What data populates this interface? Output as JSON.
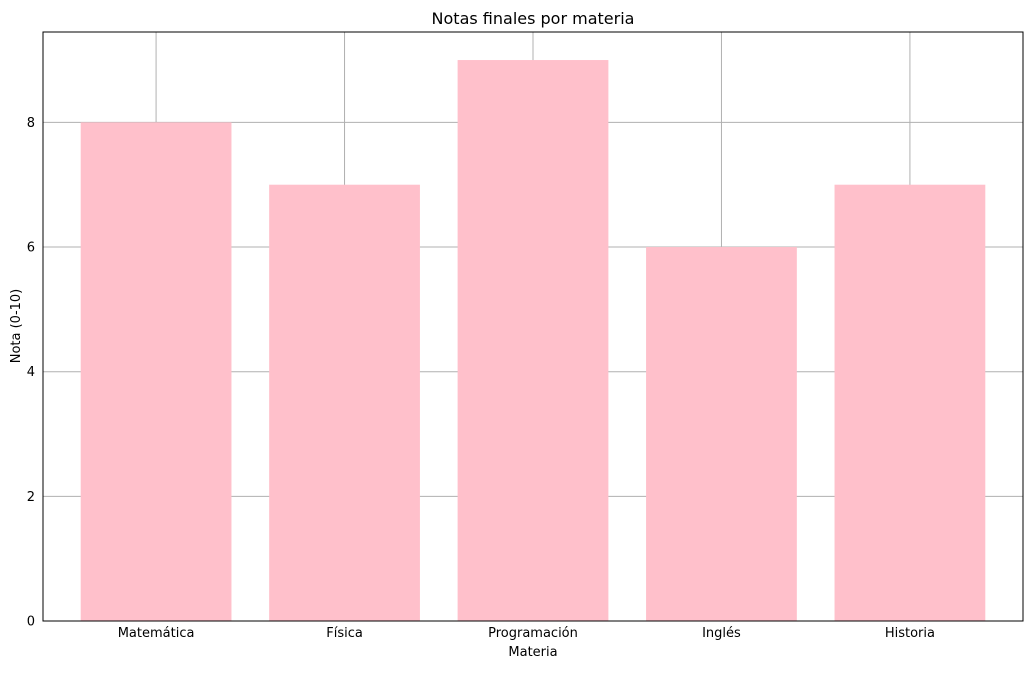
{
  "chart_data": {
    "type": "bar",
    "title": "Notas finales por materia",
    "xlabel": "Materia",
    "ylabel": "Nota (0-10)",
    "categories": [
      "Matemática",
      "Física",
      "Programación",
      "Inglés",
      "Historia"
    ],
    "values": [
      8,
      7,
      9,
      6,
      7
    ],
    "ylim": [
      0,
      9.45
    ],
    "yticks": [
      0,
      2,
      4,
      6,
      8
    ],
    "grid": true,
    "legend": "none",
    "bar_color": "#ffc0cb",
    "grid_color": "#b0b0b0"
  }
}
